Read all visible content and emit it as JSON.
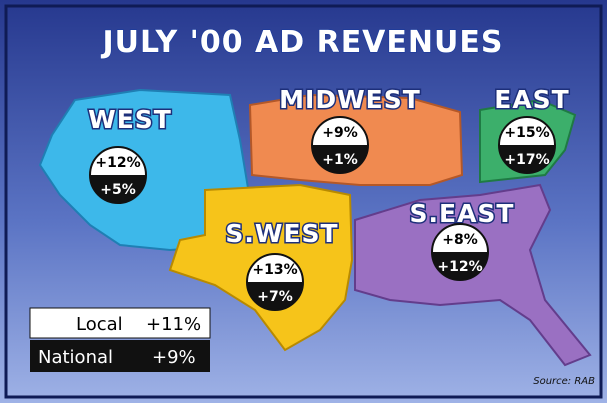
{
  "title": "JULY '00 AD REVENUES",
  "regions": [
    {
      "name": "WEST",
      "local": "+12%",
      "national": "+5%"
    },
    {
      "name": "MIDWEST",
      "local": "+9%",
      "national": "+1%"
    },
    {
      "name": "EAST",
      "local": "+15%",
      "national": "+17%"
    },
    {
      "name": "S.WEST",
      "local": "+13%",
      "national": "+7%"
    },
    {
      "name": "S.EAST",
      "local": "+8%",
      "national": "+12%"
    }
  ],
  "legend": {
    "local": {
      "label": "Local",
      "value": "+11%"
    },
    "national": {
      "label": "National",
      "value": "+9%"
    }
  },
  "source": "Source: RAB"
}
